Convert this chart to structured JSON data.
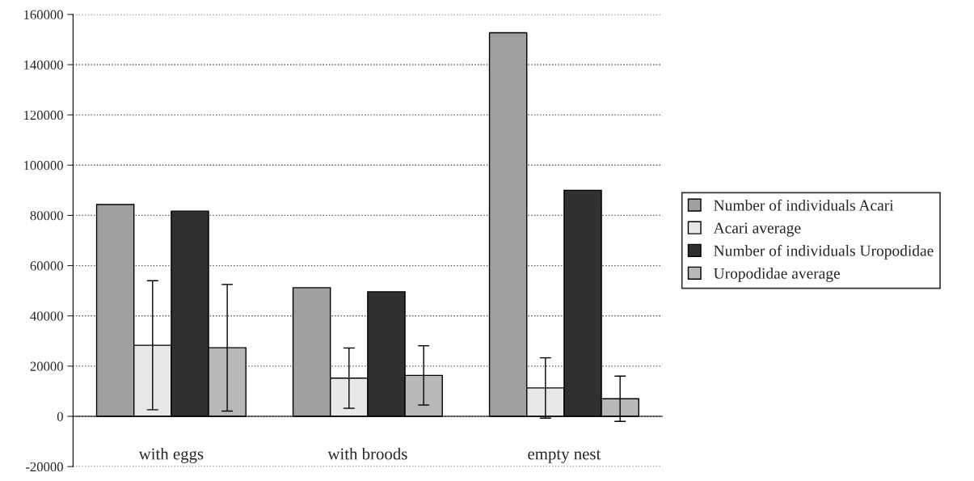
{
  "chart_data": {
    "type": "bar",
    "categories": [
      "with eggs",
      "with broods",
      "empty nest"
    ],
    "series": [
      {
        "name": "Number of individuals Acari",
        "color": "#a0a0a0",
        "values": [
          84300,
          51200,
          152700
        ]
      },
      {
        "name": "Acari average",
        "color": "#e8e8e8",
        "values": [
          28300,
          15200,
          11300
        ],
        "errors": [
          25700,
          12000,
          12000
        ]
      },
      {
        "name": "Number of individuals Uropodidae",
        "color": "#303030",
        "values": [
          81700,
          49600,
          90000
        ]
      },
      {
        "name": "Uropodidae average",
        "color": "#b8b8b8",
        "values": [
          27300,
          16300,
          7000
        ],
        "errors": [
          25200,
          11800,
          9000
        ]
      }
    ],
    "ylim": [
      -20000,
      160000
    ],
    "yticks": [
      -20000,
      0,
      20000,
      40000,
      60000,
      80000,
      100000,
      120000,
      140000,
      160000
    ],
    "grid": "y",
    "legend": "right"
  }
}
